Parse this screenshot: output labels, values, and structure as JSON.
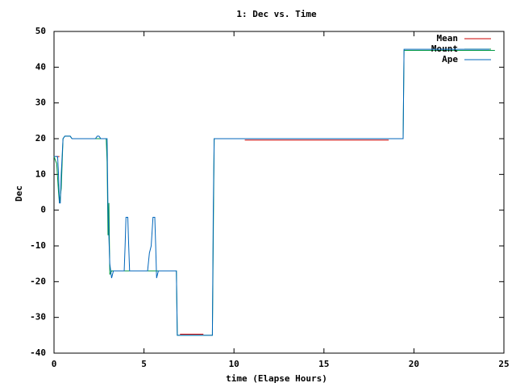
{
  "chart_data": {
    "type": "line",
    "title": "1: Dec vs. Time",
    "xlabel": "time (Elapse Hours)",
    "ylabel": "Dec",
    "xlim": [
      0,
      25
    ],
    "ylim": [
      -40,
      50
    ],
    "xticks": [
      0,
      5,
      10,
      15,
      20,
      25
    ],
    "yticks": [
      -40,
      -30,
      -20,
      -10,
      0,
      10,
      20,
      30,
      40,
      50
    ],
    "legend": "top-right",
    "series": [
      {
        "name": "Mean",
        "color": "#cc0000",
        "x": [
          0.1,
          0.3,
          0.35,
          7.0,
          8.3,
          8.35,
          10.6,
          18.6
        ],
        "values": [
          15,
          15,
          null,
          -34.7,
          -34.7,
          null,
          19.6,
          19.6
        ]
      },
      {
        "name": "Mount",
        "color": "#009944",
        "x": [
          0,
          0.15,
          0.25,
          0.3,
          0.4,
          0.5,
          0.6,
          0.9,
          1.0,
          2.9,
          2.95,
          3.0,
          3.05,
          3.1,
          3.2,
          3.3,
          6.8,
          6.85,
          8.8,
          8.9,
          19.4,
          19.45,
          24.5
        ],
        "values": [
          15,
          13,
          5,
          2,
          6,
          20,
          20.7,
          20.7,
          20,
          20,
          13.5,
          -7,
          2,
          -18,
          -17,
          -17,
          -17,
          -35,
          -35,
          20,
          20,
          44.7,
          44.7
        ]
      },
      {
        "name": "Ape",
        "color": "#0066bb",
        "x": [
          0,
          0.2,
          0.25,
          0.3,
          0.35,
          0.4,
          0.5,
          0.6,
          0.9,
          1.0,
          2.3,
          2.4,
          2.5,
          2.6,
          2.95,
          3.0,
          3.1,
          3.2,
          3.3,
          3.9,
          3.95,
          4.0,
          4.1,
          4.15,
          4.2,
          5.2,
          5.3,
          5.4,
          5.5,
          5.6,
          5.65,
          5.7,
          5.8,
          6.8,
          6.85,
          8.8,
          8.85,
          8.9,
          19.4,
          19.45,
          24.2
        ],
        "values": [
          15,
          15,
          10,
          2,
          2,
          10,
          20,
          20.7,
          20.7,
          20,
          20,
          20.7,
          20.7,
          20,
          20,
          0,
          -15,
          -19,
          -17,
          -17,
          -10,
          -2,
          -2,
          -10,
          -17,
          -17,
          -12,
          -10,
          -2,
          -2,
          -10,
          -19,
          -17,
          -17,
          -35,
          -35,
          0,
          20,
          20,
          45,
          45
        ]
      }
    ]
  }
}
